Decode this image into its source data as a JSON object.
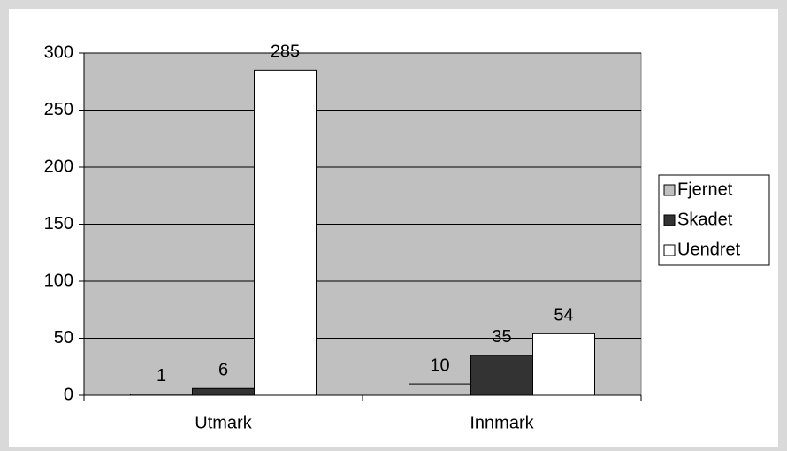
{
  "chart_data": {
    "type": "bar",
    "categories": [
      "Utmark",
      "Innmark"
    ],
    "series": [
      {
        "name": "Fjernet",
        "color": "#c0c0c0",
        "values": [
          1,
          10
        ]
      },
      {
        "name": "Skadet",
        "color": "#333333",
        "values": [
          6,
          35
        ]
      },
      {
        "name": "Uendret",
        "color": "#ffffff",
        "values": [
          285,
          54
        ]
      }
    ],
    "ylim": [
      0,
      300
    ],
    "yticks": [
      0,
      50,
      100,
      150,
      200,
      250,
      300
    ],
    "grid": true,
    "plot_background": "#c0c0c0",
    "legend": "right"
  }
}
